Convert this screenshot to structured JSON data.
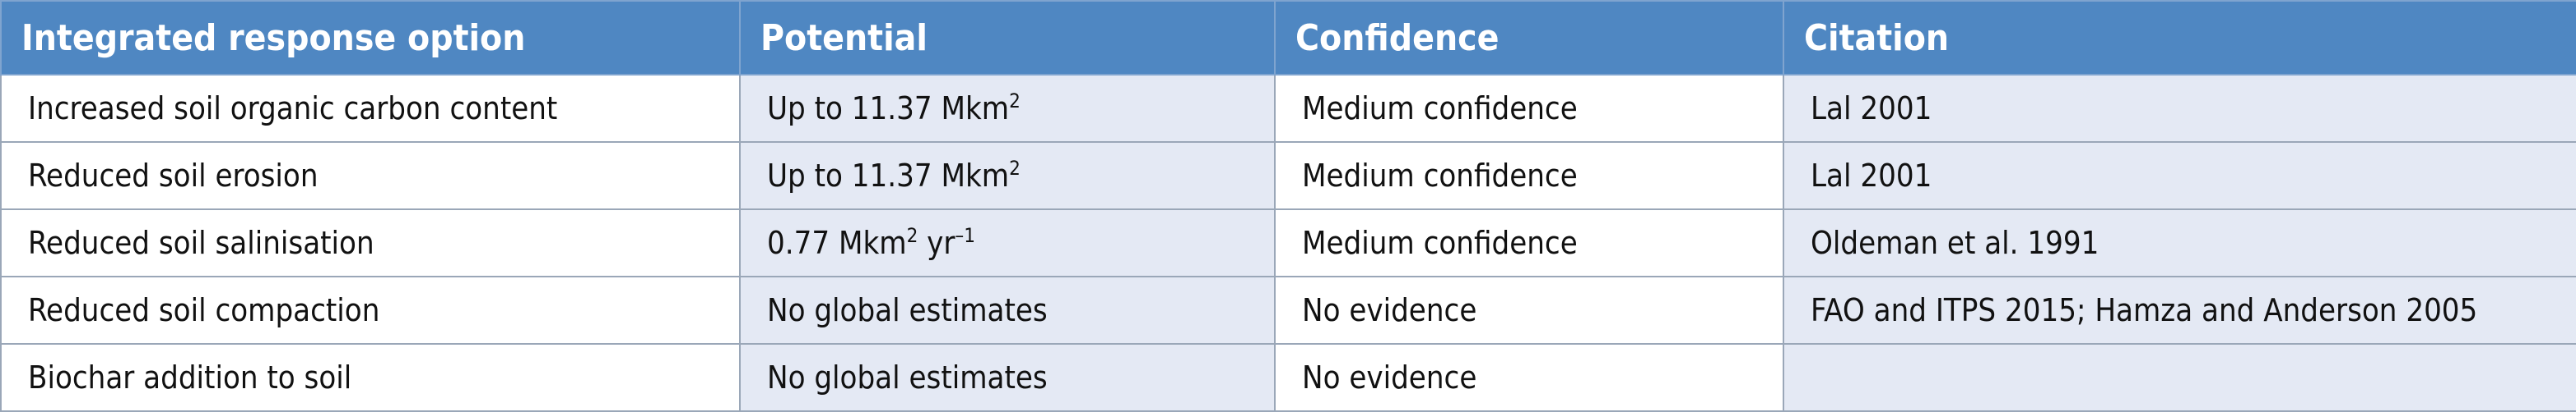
{
  "headers": [
    "Integrated response option",
    "Potential",
    "Confidence",
    "Citation"
  ],
  "rows": [
    {
      "option": "Increased soil organic carbon content",
      "potential": "Up to 11.37 Mkm",
      "potential_sup1": "2",
      "potential_mid": "",
      "potential_sup2": "",
      "confidence": "Medium confidence",
      "citation": "Lal 2001"
    },
    {
      "option": "Reduced soil erosion",
      "potential": "Up to 11.37 Mkm",
      "potential_sup1": "2",
      "potential_mid": "",
      "potential_sup2": "",
      "confidence": "Medium confidence",
      "citation": "Lal 2001"
    },
    {
      "option": "Reduced soil salinisation",
      "potential": "0.77 Mkm",
      "potential_sup1": "2",
      "potential_mid": " yr",
      "potential_sup2": "–1",
      "confidence": "Medium confidence",
      "citation": "Oldeman et al. 1991"
    },
    {
      "option": "Reduced soil compaction",
      "potential": "No global estimates",
      "potential_sup1": "",
      "potential_mid": "",
      "potential_sup2": "",
      "confidence": "No evidence",
      "citation": "FAO and ITPS 2015; Hamza and Anderson 2005"
    },
    {
      "option": "Biochar addition to soil",
      "potential": "No global estimates",
      "potential_sup1": "",
      "potential_mid": "",
      "potential_sup2": "",
      "confidence": "No evidence",
      "citation": ""
    }
  ],
  "colors": {
    "header_bg": "#4f87c2",
    "shaded_bg": "#e4e9f4",
    "border": "#9aa7b8"
  }
}
